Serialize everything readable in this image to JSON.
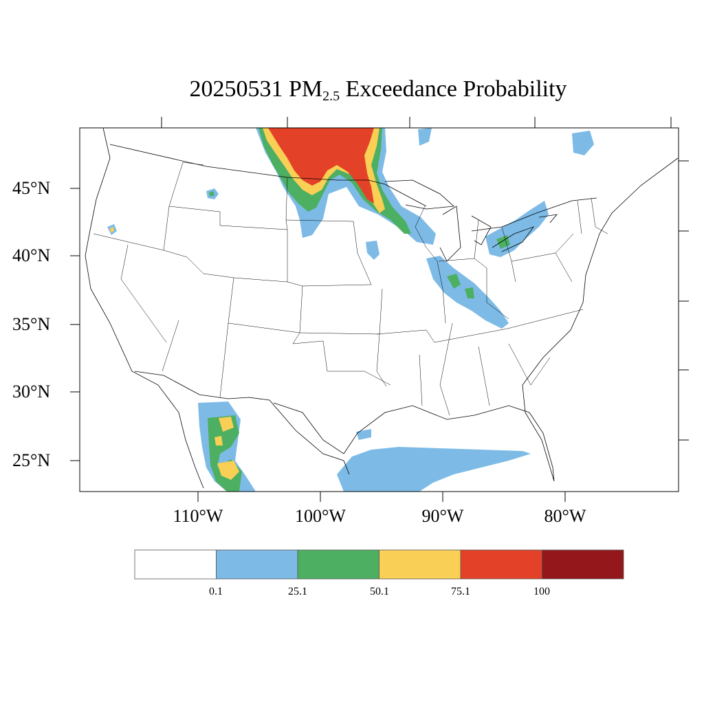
{
  "title": {
    "prefix": "20250531 PM",
    "subscript": "2.5",
    "suffix": " Exceedance Probability"
  },
  "lat_labels": [
    "45°N",
    "40°N",
    "35°N",
    "30°N",
    "25°N"
  ],
  "lon_labels": [
    "110°W",
    "100°W",
    "90°W",
    "80°W"
  ],
  "colorbar": {
    "labels": [
      "0.1",
      "25.1",
      "50.1",
      "75.1",
      "100"
    ],
    "colors": [
      "#ffffff",
      "#7dbbe6",
      "#4caf62",
      "#f9cf55",
      "#e34128",
      "#94171b"
    ]
  },
  "map_data": {
    "projection": "Lambert conformal (CONUS)",
    "lon_range": [
      -125,
      -65
    ],
    "lat_range": [
      22,
      50
    ],
    "legend_placement": "bottom",
    "regions": [
      {
        "name": "Northern Plains / Canada border",
        "max_class": "75.1-100"
      },
      {
        "name": "Wisconsin – Illinois – Indiana corridor",
        "max_class": "25.1-50.1"
      },
      {
        "name": "Lake Erie / Ontario",
        "max_class": "25.1-50.1"
      },
      {
        "name": "Northwest Mexico (Sonora/Chihuahua)",
        "max_class": "50.1-75.1"
      },
      {
        "name": "Gulf of Mexico",
        "max_class": "0.1-25.1"
      }
    ]
  }
}
